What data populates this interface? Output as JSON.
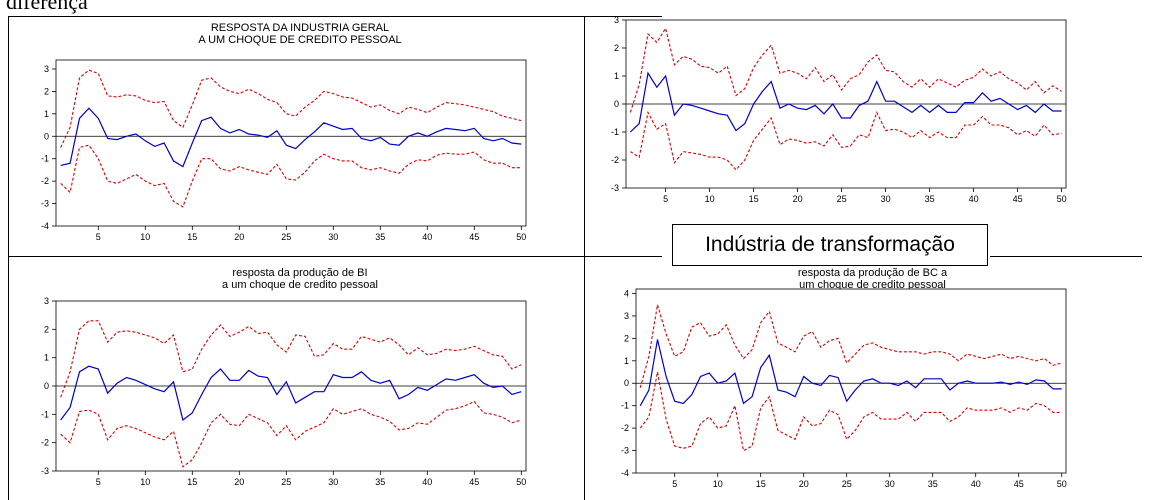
{
  "page": {
    "top_text": "diferença",
    "label_box": "Indústria de transformação"
  },
  "colors": {
    "irf": "#0000cc",
    "band": "#dd0000",
    "zero": "#000000"
  },
  "chart_data": [
    {
      "type": "line",
      "title": "RESPOSTA DA INDUSTRIA GERAL",
      "subtitle": "A UM CHOQUE DE CREDITO PESSOAL",
      "x": [
        1,
        2,
        3,
        4,
        5,
        6,
        7,
        8,
        9,
        10,
        11,
        12,
        13,
        14,
        15,
        16,
        17,
        18,
        19,
        20,
        21,
        22,
        23,
        24,
        25,
        26,
        27,
        28,
        29,
        30,
        31,
        32,
        33,
        34,
        35,
        36,
        37,
        38,
        39,
        40,
        41,
        42,
        43,
        44,
        45,
        46,
        47,
        48,
        49,
        50
      ],
      "xticks": [
        5,
        10,
        15,
        20,
        25,
        30,
        35,
        40,
        45,
        50
      ],
      "yticks": [
        -4,
        -3,
        -2,
        -1,
        0,
        1,
        2,
        3
      ],
      "ylim": [
        -4,
        3.4
      ],
      "series": [
        {
          "role": "upper",
          "values": [
            -0.5,
            0.4,
            2.6,
            2.95,
            2.8,
            1.8,
            1.75,
            1.85,
            1.8,
            1.6,
            1.5,
            1.55,
            0.7,
            0.4,
            1.4,
            2.5,
            2.6,
            2.2,
            2.0,
            1.9,
            2.1,
            1.9,
            1.65,
            1.5,
            1.0,
            0.9,
            1.3,
            1.6,
            2.0,
            1.9,
            1.75,
            1.7,
            1.5,
            1.3,
            1.4,
            1.15,
            1.0,
            1.3,
            1.2,
            1.05,
            1.3,
            1.5,
            1.45,
            1.4,
            1.3,
            1.2,
            1.1,
            0.9,
            0.8,
            0.7
          ]
        },
        {
          "role": "irf",
          "values": [
            -1.3,
            -1.2,
            0.8,
            1.25,
            0.8,
            -0.1,
            -0.15,
            0.0,
            0.1,
            -0.2,
            -0.45,
            -0.3,
            -1.1,
            -1.35,
            -0.3,
            0.7,
            0.85,
            0.35,
            0.15,
            0.3,
            0.1,
            0.05,
            -0.05,
            0.25,
            -0.4,
            -0.55,
            -0.15,
            0.2,
            0.6,
            0.45,
            0.3,
            0.35,
            -0.1,
            -0.2,
            -0.05,
            -0.35,
            -0.4,
            0.0,
            0.15,
            0.0,
            0.2,
            0.35,
            0.3,
            0.25,
            0.35,
            -0.1,
            -0.2,
            -0.1,
            -0.3,
            -0.35
          ]
        },
        {
          "role": "lower",
          "values": [
            -2.1,
            -2.5,
            -0.5,
            -0.4,
            -1.0,
            -2.0,
            -2.1,
            -1.9,
            -1.7,
            -2.0,
            -2.2,
            -2.1,
            -2.9,
            -3.15,
            -2.0,
            -1.0,
            -1.0,
            -1.45,
            -1.55,
            -1.35,
            -1.5,
            -1.6,
            -1.7,
            -1.25,
            -1.9,
            -1.95,
            -1.6,
            -1.1,
            -0.8,
            -1.0,
            -1.1,
            -1.1,
            -1.4,
            -1.5,
            -1.4,
            -1.55,
            -1.65,
            -1.25,
            -1.05,
            -1.1,
            -0.85,
            -0.75,
            -0.8,
            -0.8,
            -0.7,
            -1.05,
            -1.2,
            -1.2,
            -1.4,
            -1.4
          ]
        }
      ]
    },
    {
      "type": "line",
      "title": "",
      "subtitle": "",
      "x": [
        1,
        2,
        3,
        4,
        5,
        6,
        7,
        8,
        9,
        10,
        11,
        12,
        13,
        14,
        15,
        16,
        17,
        18,
        19,
        20,
        21,
        22,
        23,
        24,
        25,
        26,
        27,
        28,
        29,
        30,
        31,
        32,
        33,
        34,
        35,
        36,
        37,
        38,
        39,
        40,
        41,
        42,
        43,
        44,
        45,
        46,
        47,
        48,
        49,
        50
      ],
      "xticks": [
        5,
        10,
        15,
        20,
        25,
        30,
        35,
        40,
        45,
        50
      ],
      "yticks": [
        -3,
        -2,
        -1,
        0,
        1,
        2,
        3
      ],
      "ylim": [
        -3,
        3
      ],
      "series": [
        {
          "role": "upper",
          "values": [
            -0.3,
            0.7,
            2.5,
            2.2,
            2.7,
            1.4,
            1.7,
            1.6,
            1.35,
            1.3,
            1.1,
            1.35,
            0.3,
            0.55,
            1.3,
            1.75,
            2.1,
            1.1,
            1.2,
            1.1,
            0.9,
            1.3,
            0.8,
            1.05,
            0.5,
            0.9,
            1.05,
            1.5,
            1.75,
            1.2,
            1.15,
            0.8,
            0.6,
            0.9,
            0.6,
            0.9,
            0.75,
            0.6,
            0.85,
            0.95,
            1.25,
            1.0,
            1.15,
            0.9,
            0.75,
            0.5,
            0.8,
            0.4,
            0.65,
            0.45
          ]
        },
        {
          "role": "irf",
          "values": [
            -1.0,
            -0.7,
            1.1,
            0.6,
            1.0,
            -0.4,
            0.0,
            -0.05,
            -0.15,
            -0.25,
            -0.35,
            -0.4,
            -0.95,
            -0.7,
            0.0,
            0.45,
            0.8,
            -0.15,
            0.0,
            -0.15,
            -0.2,
            -0.05,
            -0.35,
            0.0,
            -0.5,
            -0.5,
            -0.05,
            0.1,
            0.8,
            0.1,
            0.1,
            -0.1,
            -0.3,
            -0.05,
            -0.3,
            -0.05,
            -0.3,
            -0.3,
            0.05,
            0.05,
            0.4,
            0.1,
            0.2,
            0.0,
            -0.2,
            -0.05,
            -0.3,
            0.0,
            -0.25,
            -0.25
          ]
        },
        {
          "role": "lower",
          "values": [
            -1.7,
            -1.9,
            -0.3,
            -0.9,
            -0.7,
            -2.1,
            -1.7,
            -1.75,
            -1.8,
            -1.9,
            -1.9,
            -2.0,
            -2.35,
            -2.0,
            -1.3,
            -0.9,
            -0.5,
            -1.45,
            -1.25,
            -1.3,
            -1.4,
            -1.35,
            -1.5,
            -1.1,
            -1.55,
            -1.5,
            -1.1,
            -1.2,
            -0.3,
            -0.95,
            -0.9,
            -1.0,
            -1.2,
            -0.95,
            -1.2,
            -1.0,
            -1.2,
            -1.2,
            -0.75,
            -0.75,
            -0.45,
            -0.75,
            -0.75,
            -0.85,
            -1.1,
            -0.95,
            -1.15,
            -0.75,
            -1.1,
            -1.05
          ]
        }
      ]
    },
    {
      "type": "line",
      "title": "resposta da produção de BI",
      "subtitle": "a um choque de credito pessoal",
      "x": [
        1,
        2,
        3,
        4,
        5,
        6,
        7,
        8,
        9,
        10,
        11,
        12,
        13,
        14,
        15,
        16,
        17,
        18,
        19,
        20,
        21,
        22,
        23,
        24,
        25,
        26,
        27,
        28,
        29,
        30,
        31,
        32,
        33,
        34,
        35,
        36,
        37,
        38,
        39,
        40,
        41,
        42,
        43,
        44,
        45,
        46,
        47,
        48,
        49,
        50
      ],
      "xticks": [
        5,
        10,
        15,
        20,
        25,
        30,
        35,
        40,
        45,
        50
      ],
      "yticks": [
        -3,
        -2,
        -1,
        0,
        1,
        2,
        3
      ],
      "ylim": [
        -3,
        3
      ],
      "series": [
        {
          "role": "upper",
          "values": [
            -0.4,
            0.5,
            2.0,
            2.3,
            2.3,
            1.55,
            1.9,
            1.95,
            1.9,
            1.8,
            1.7,
            1.5,
            1.8,
            0.5,
            0.6,
            1.3,
            1.8,
            2.15,
            1.75,
            1.9,
            2.1,
            1.85,
            1.9,
            1.45,
            1.2,
            1.8,
            1.75,
            1.05,
            1.1,
            1.5,
            1.3,
            1.3,
            1.75,
            1.65,
            1.55,
            1.7,
            1.45,
            1.1,
            1.35,
            1.1,
            1.15,
            1.3,
            1.25,
            1.3,
            1.4,
            1.25,
            1.1,
            1.05,
            0.6,
            0.75
          ]
        },
        {
          "role": "irf",
          "values": [
            -1.2,
            -0.75,
            0.5,
            0.7,
            0.6,
            -0.25,
            0.1,
            0.3,
            0.2,
            0.05,
            -0.1,
            -0.2,
            0.15,
            -1.2,
            -0.95,
            -0.3,
            0.3,
            0.6,
            0.2,
            0.2,
            0.55,
            0.35,
            0.3,
            -0.3,
            0.15,
            -0.6,
            -0.4,
            -0.2,
            -0.2,
            0.4,
            0.3,
            0.3,
            0.5,
            0.2,
            0.1,
            0.2,
            -0.45,
            -0.3,
            -0.05,
            -0.15,
            0.05,
            0.25,
            0.2,
            0.3,
            0.4,
            0.1,
            -0.05,
            0.0,
            -0.3,
            -0.2
          ]
        },
        {
          "role": "lower",
          "values": [
            -1.7,
            -2.0,
            -0.9,
            -0.85,
            -1.0,
            -1.9,
            -1.5,
            -1.4,
            -1.5,
            -1.65,
            -1.8,
            -1.9,
            -1.6,
            -2.85,
            -2.6,
            -2.0,
            -1.3,
            -1.0,
            -1.35,
            -1.4,
            -1.0,
            -1.15,
            -1.3,
            -1.75,
            -1.4,
            -1.9,
            -1.6,
            -1.45,
            -1.3,
            -0.8,
            -1.0,
            -0.9,
            -0.8,
            -1.0,
            -1.1,
            -1.25,
            -1.55,
            -1.5,
            -1.3,
            -1.35,
            -1.1,
            -0.85,
            -0.8,
            -0.7,
            -0.55,
            -0.95,
            -1.0,
            -1.1,
            -1.3,
            -1.2
          ]
        }
      ]
    },
    {
      "type": "line",
      "title": "resposta da produção de BC a",
      "subtitle": "um choque de credito pessoal",
      "x": [
        1,
        2,
        3,
        4,
        5,
        6,
        7,
        8,
        9,
        10,
        11,
        12,
        13,
        14,
        15,
        16,
        17,
        18,
        19,
        20,
        21,
        22,
        23,
        24,
        25,
        26,
        27,
        28,
        29,
        30,
        31,
        32,
        33,
        34,
        35,
        36,
        37,
        38,
        39,
        40,
        41,
        42,
        43,
        44,
        45,
        46,
        47,
        48,
        49,
        50
      ],
      "xticks": [
        5,
        10,
        15,
        20,
        25,
        30,
        35,
        40,
        45,
        50
      ],
      "yticks": [
        -4,
        -3,
        -2,
        -1,
        0,
        1,
        2,
        3,
        4
      ],
      "ylim": [
        -4,
        4.2
      ],
      "series": [
        {
          "role": "upper",
          "values": [
            -0.2,
            1.2,
            3.5,
            2.2,
            1.2,
            1.4,
            2.5,
            2.7,
            2.1,
            2.2,
            2.6,
            1.7,
            1.1,
            1.5,
            2.7,
            3.2,
            1.8,
            1.6,
            1.4,
            2.1,
            2.3,
            1.6,
            1.9,
            2.0,
            0.9,
            1.3,
            1.7,
            1.8,
            1.6,
            1.5,
            1.4,
            1.4,
            1.4,
            1.3,
            1.4,
            1.4,
            1.3,
            1.0,
            1.3,
            1.2,
            1.1,
            1.2,
            1.3,
            1.1,
            1.2,
            1.1,
            1.0,
            1.1,
            0.8,
            0.9
          ]
        },
        {
          "role": "irf",
          "values": [
            -1.0,
            -0.3,
            1.95,
            0.3,
            -0.8,
            -0.9,
            -0.5,
            0.3,
            0.45,
            0.0,
            0.1,
            0.45,
            -0.9,
            -0.6,
            0.7,
            1.25,
            -0.3,
            -0.4,
            -0.6,
            0.3,
            0.0,
            -0.1,
            0.35,
            0.25,
            -0.8,
            -0.3,
            0.1,
            0.2,
            0.0,
            0.0,
            -0.1,
            0.1,
            -0.2,
            0.2,
            0.2,
            0.2,
            -0.3,
            0.0,
            0.1,
            0.0,
            0.0,
            0.0,
            0.05,
            -0.05,
            0.05,
            -0.05,
            0.15,
            0.1,
            -0.25,
            -0.25
          ]
        },
        {
          "role": "lower",
          "values": [
            -2.0,
            -1.5,
            0.5,
            -1.6,
            -2.8,
            -2.9,
            -2.8,
            -1.8,
            -1.5,
            -2.0,
            -1.9,
            -1.0,
            -3.0,
            -2.8,
            -1.1,
            -0.6,
            -2.1,
            -2.3,
            -2.5,
            -1.5,
            -1.9,
            -1.8,
            -1.2,
            -1.4,
            -2.5,
            -2.1,
            -1.5,
            -1.3,
            -1.6,
            -1.6,
            -1.6,
            -1.3,
            -1.7,
            -1.3,
            -1.3,
            -1.3,
            -1.7,
            -1.5,
            -1.1,
            -1.2,
            -1.2,
            -1.2,
            -1.1,
            -1.3,
            -1.1,
            -1.2,
            -0.9,
            -1.0,
            -1.3,
            -1.3
          ]
        }
      ]
    }
  ]
}
